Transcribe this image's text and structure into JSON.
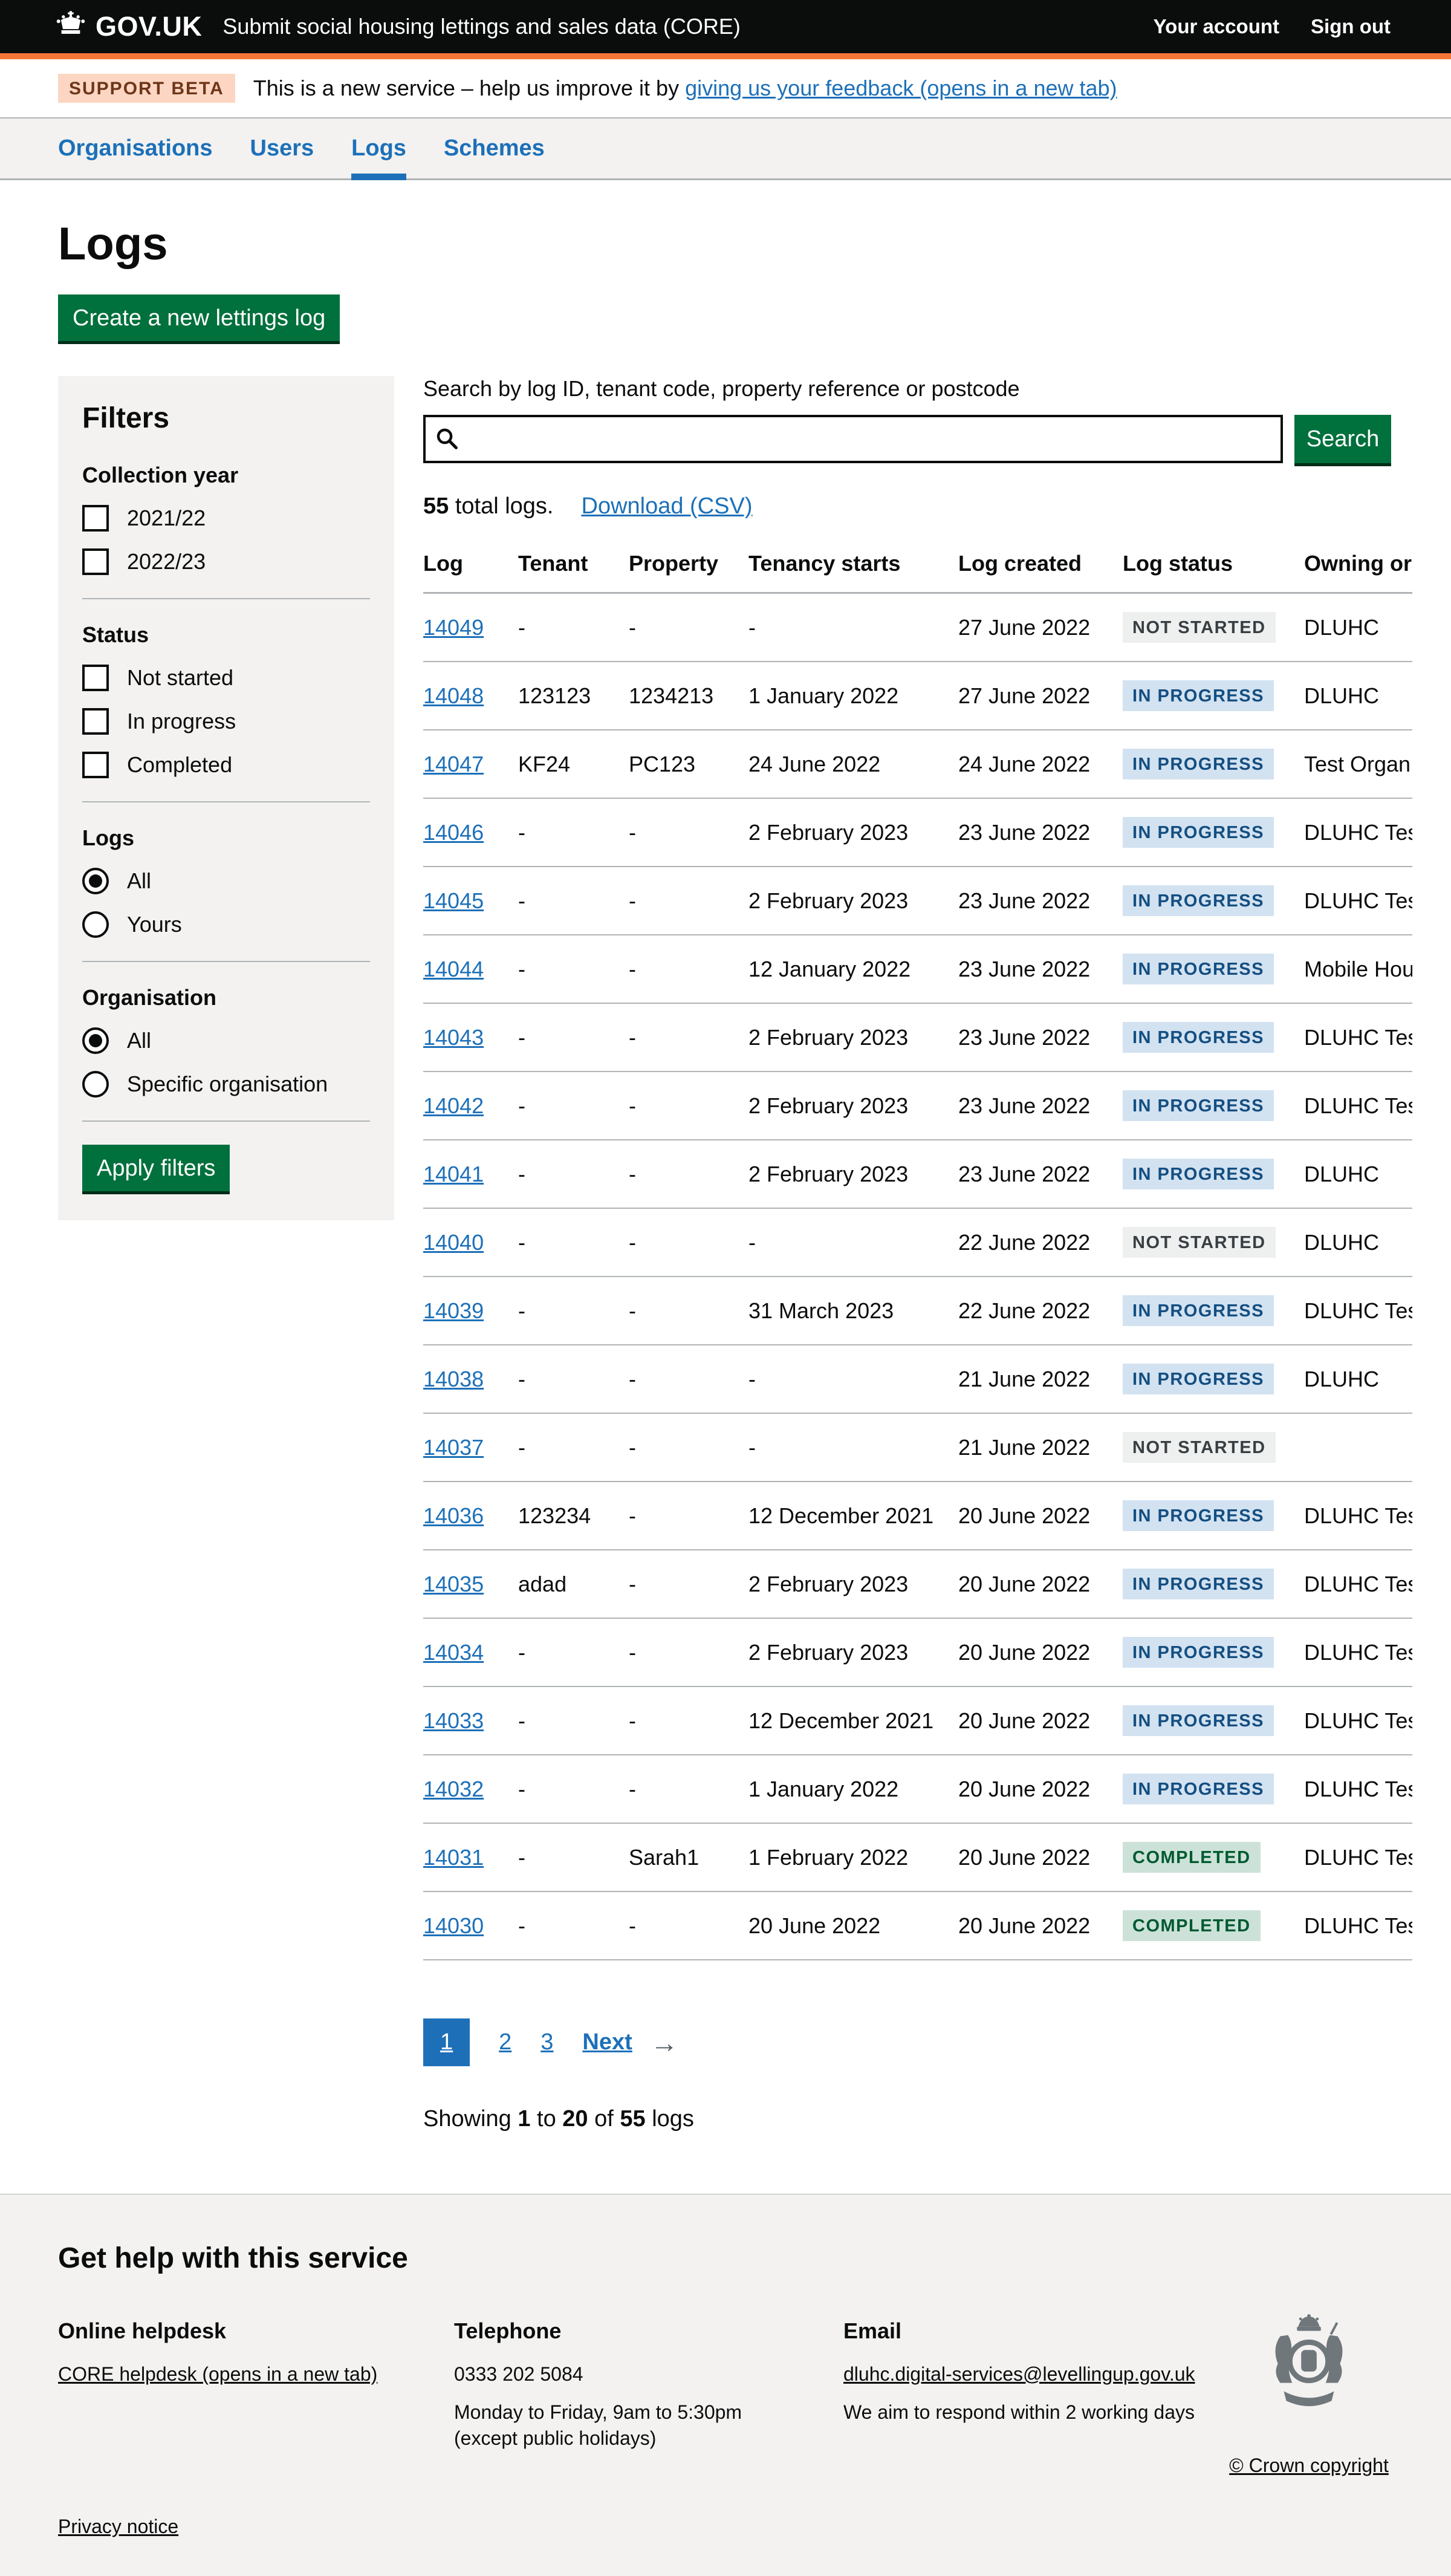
{
  "header": {
    "logo_text": "GOV.UK",
    "service_name": "Submit social housing lettings and sales data (CORE)",
    "links": [
      {
        "label": "Your account"
      },
      {
        "label": "Sign out"
      }
    ]
  },
  "phase_banner": {
    "tag": "SUPPORT BETA",
    "text_before": "This is a new service – help us improve it by ",
    "link_text": "giving us your feedback (opens in a new tab)"
  },
  "nav": {
    "items": [
      {
        "label": "Organisations",
        "active": false
      },
      {
        "label": "Users",
        "active": false
      },
      {
        "label": "Logs",
        "active": true
      },
      {
        "label": "Schemes",
        "active": false
      }
    ]
  },
  "page": {
    "title": "Logs",
    "create_button_label": "Create a new lettings log"
  },
  "filters": {
    "title": "Filters",
    "apply_button_label": "Apply filters",
    "groups": [
      {
        "label": "Collection year",
        "type": "checkbox",
        "options": [
          {
            "label": "2021/22",
            "checked": false
          },
          {
            "label": "2022/23",
            "checked": false
          }
        ]
      },
      {
        "label": "Status",
        "type": "checkbox",
        "options": [
          {
            "label": "Not started",
            "checked": false
          },
          {
            "label": "In progress",
            "checked": false
          },
          {
            "label": "Completed",
            "checked": false
          }
        ]
      },
      {
        "label": "Logs",
        "type": "radio",
        "options": [
          {
            "label": "All",
            "checked": true
          },
          {
            "label": "Yours",
            "checked": false
          }
        ]
      },
      {
        "label": "Organisation",
        "type": "radio",
        "options": [
          {
            "label": "All",
            "checked": true
          },
          {
            "label": "Specific organisation",
            "checked": false
          }
        ]
      }
    ]
  },
  "search": {
    "label": "Search by log ID, tenant code, property reference or postcode",
    "value": "",
    "button_label": "Search"
  },
  "results": {
    "total_bold": "55",
    "total_rest": " total logs.",
    "download_link": "Download (CSV)"
  },
  "table": {
    "columns": [
      "Log",
      "Tenant",
      "Property",
      "Tenancy starts",
      "Log created",
      "Log status",
      "Owning or"
    ],
    "rows": [
      {
        "log": "14049",
        "tenant": "-",
        "property": "-",
        "tenancy_starts": "-",
        "log_created": "27 June 2022",
        "status": "NOT STARTED",
        "status_type": "not-started",
        "owning": "DLUHC"
      },
      {
        "log": "14048",
        "tenant": "123123",
        "property": "1234213",
        "tenancy_starts": "1 January 2022",
        "log_created": "27 June 2022",
        "status": "IN PROGRESS",
        "status_type": "in-progress",
        "owning": "DLUHC"
      },
      {
        "log": "14047",
        "tenant": "KF24",
        "property": "PC123",
        "tenancy_starts": "24 June 2022",
        "log_created": "24 June 2022",
        "status": "IN PROGRESS",
        "status_type": "in-progress",
        "owning": "Test Organ"
      },
      {
        "log": "14046",
        "tenant": "-",
        "property": "-",
        "tenancy_starts": "2 February 2023",
        "log_created": "23 June 2022",
        "status": "IN PROGRESS",
        "status_type": "in-progress",
        "owning": "DLUHC Tes"
      },
      {
        "log": "14045",
        "tenant": "-",
        "property": "-",
        "tenancy_starts": "2 February 2023",
        "log_created": "23 June 2022",
        "status": "IN PROGRESS",
        "status_type": "in-progress",
        "owning": "DLUHC Tes"
      },
      {
        "log": "14044",
        "tenant": "-",
        "property": "-",
        "tenancy_starts": "12 January 2022",
        "log_created": "23 June 2022",
        "status": "IN PROGRESS",
        "status_type": "in-progress",
        "owning": "Mobile Hou"
      },
      {
        "log": "14043",
        "tenant": "-",
        "property": "-",
        "tenancy_starts": "2 February 2023",
        "log_created": "23 June 2022",
        "status": "IN PROGRESS",
        "status_type": "in-progress",
        "owning": "DLUHC Tes"
      },
      {
        "log": "14042",
        "tenant": "-",
        "property": "-",
        "tenancy_starts": "2 February 2023",
        "log_created": "23 June 2022",
        "status": "IN PROGRESS",
        "status_type": "in-progress",
        "owning": "DLUHC Tes"
      },
      {
        "log": "14041",
        "tenant": "-",
        "property": "-",
        "tenancy_starts": "2 February 2023",
        "log_created": "23 June 2022",
        "status": "IN PROGRESS",
        "status_type": "in-progress",
        "owning": "DLUHC"
      },
      {
        "log": "14040",
        "tenant": "-",
        "property": "-",
        "tenancy_starts": "-",
        "log_created": "22 June 2022",
        "status": "NOT STARTED",
        "status_type": "not-started",
        "owning": "DLUHC"
      },
      {
        "log": "14039",
        "tenant": "-",
        "property": "-",
        "tenancy_starts": "31 March 2023",
        "log_created": "22 June 2022",
        "status": "IN PROGRESS",
        "status_type": "in-progress",
        "owning": "DLUHC Tes"
      },
      {
        "log": "14038",
        "tenant": "-",
        "property": "-",
        "tenancy_starts": "-",
        "log_created": "21 June 2022",
        "status": "IN PROGRESS",
        "status_type": "in-progress",
        "owning": "DLUHC"
      },
      {
        "log": "14037",
        "tenant": "-",
        "property": "-",
        "tenancy_starts": "-",
        "log_created": "21 June 2022",
        "status": "NOT STARTED",
        "status_type": "not-started",
        "owning": ""
      },
      {
        "log": "14036",
        "tenant": "123234",
        "property": "-",
        "tenancy_starts": "12 December 2021",
        "log_created": "20 June 2022",
        "status": "IN PROGRESS",
        "status_type": "in-progress",
        "owning": "DLUHC Tes"
      },
      {
        "log": "14035",
        "tenant": "adad",
        "property": "-",
        "tenancy_starts": "2 February 2023",
        "log_created": "20 June 2022",
        "status": "IN PROGRESS",
        "status_type": "in-progress",
        "owning": "DLUHC Tes"
      },
      {
        "log": "14034",
        "tenant": "-",
        "property": "-",
        "tenancy_starts": "2 February 2023",
        "log_created": "20 June 2022",
        "status": "IN PROGRESS",
        "status_type": "in-progress",
        "owning": "DLUHC Tes"
      },
      {
        "log": "14033",
        "tenant": "-",
        "property": "-",
        "tenancy_starts": "12 December 2021",
        "log_created": "20 June 2022",
        "status": "IN PROGRESS",
        "status_type": "in-progress",
        "owning": "DLUHC Tes"
      },
      {
        "log": "14032",
        "tenant": "-",
        "property": "-",
        "tenancy_starts": "1 January 2022",
        "log_created": "20 June 2022",
        "status": "IN PROGRESS",
        "status_type": "in-progress",
        "owning": "DLUHC Tes"
      },
      {
        "log": "14031",
        "tenant": "-",
        "property": "Sarah1",
        "tenancy_starts": "1 February 2022",
        "log_created": "20 June 2022",
        "status": "COMPLETED",
        "status_type": "completed",
        "owning": "DLUHC Tes"
      },
      {
        "log": "14030",
        "tenant": "-",
        "property": "-",
        "tenancy_starts": "20 June 2022",
        "log_created": "20 June 2022",
        "status": "COMPLETED",
        "status_type": "completed",
        "owning": "DLUHC Tes"
      }
    ]
  },
  "pagination": {
    "current": "1",
    "pages": [
      "1",
      "2",
      "3"
    ],
    "next_label": "Next",
    "next_arrow": "→",
    "showing_prefix": "Showing ",
    "showing_from": "1",
    "showing_to_word": " to ",
    "showing_to": "20",
    "showing_of_word": " of ",
    "showing_total": "55",
    "showing_suffix": " logs"
  },
  "footer": {
    "heading": "Get help with this service",
    "columns": [
      {
        "heading": "Online helpdesk",
        "lines": [
          {
            "text": "CORE helpdesk (opens in a new tab)",
            "link": true
          }
        ]
      },
      {
        "heading": "Telephone",
        "lines": [
          {
            "text": "0333 202 5084",
            "link": false
          },
          {
            "text": "Monday to Friday, 9am to 5:30pm",
            "link": false
          },
          {
            "text": "(except public holidays)",
            "link": false
          }
        ]
      },
      {
        "heading": "Email",
        "lines": [
          {
            "text": "dluhc.digital-services@levellingup.gov.uk",
            "link": true
          },
          {
            "text": "We aim to respond within 2 working days",
            "link": false
          }
        ]
      }
    ],
    "privacy_link": "Privacy notice",
    "copyright_link": "© Crown copyright"
  },
  "theme": {
    "header_bg": "#0b0c0c",
    "accent_orange": "#f47738",
    "link_blue": "#1d70b8",
    "button_green": "#00703c",
    "panel_grey": "#f3f2f1",
    "border_grey": "#b1b4b6",
    "beta_tag_bg": "#fcd6c3",
    "beta_tag_text": "#6e3619",
    "tag_not_started_bg": "#eeefef",
    "tag_not_started_text": "#383f43",
    "tag_in_progress_bg": "#d2e2f1",
    "tag_in_progress_text": "#144e81",
    "tag_completed_bg": "#cce2d8",
    "tag_completed_text": "#005a30"
  }
}
